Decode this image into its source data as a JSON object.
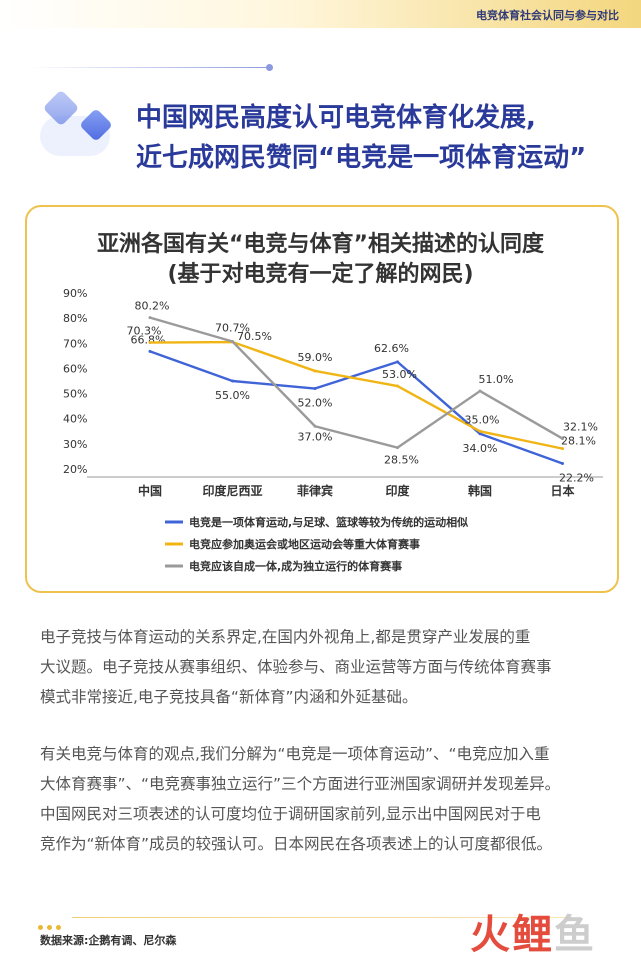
{
  "header": {
    "section_title": "电竞体育社会认同与参与对比"
  },
  "headline": {
    "line1": "中国网民高度认可电竞体育化发展,",
    "line2": "近七成网民赞同“电竞是一项体育运动”"
  },
  "chart_data": {
    "type": "line",
    "title": "亚洲各国有关“电竞与体育”相关描述的认同度",
    "subtitle": "(基于对电竞有一定了解的网民)",
    "categories": [
      "中国",
      "印度尼西亚",
      "菲律宾",
      "印度",
      "韩国",
      "日本"
    ],
    "y_ticks": [
      "90%",
      "80%",
      "70%",
      "60%",
      "50%",
      "40%",
      "30%",
      "20%"
    ],
    "ylim": [
      20,
      90
    ],
    "grid": false,
    "legend_position": "bottom",
    "series": [
      {
        "name": "电竞是一项体育运动,与足球、篮球等较为传统的运动相似",
        "color": "#3f64d8",
        "values": [
          66.8,
          55.0,
          52.0,
          62.6,
          34.0,
          22.2
        ],
        "labels": [
          "66.8%",
          "55.0%",
          "52.0%",
          "62.6%",
          "34.0%",
          "22.2%"
        ]
      },
      {
        "name": "电竞应参加奥运会或地区运动会等重大体育赛事",
        "color": "#f0b515",
        "values": [
          70.3,
          70.5,
          59.0,
          53.0,
          35.0,
          28.1
        ],
        "labels": [
          "70.3%",
          "70.5%",
          "59.0%",
          "53.0%",
          "35.0%",
          "28.1%"
        ]
      },
      {
        "name": "电竞应该自成一体,成为独立运行的体育赛事",
        "color": "#9a9a9a",
        "values": [
          80.2,
          70.7,
          37.0,
          28.5,
          51.0,
          32.1
        ],
        "labels": [
          "80.2%",
          "70.7%",
          "37.0%",
          "28.5%",
          "51.0%",
          "32.1%"
        ]
      }
    ]
  },
  "body": {
    "para1_lines": [
      "电子竞技与体育运动的关系界定,在国内外视角上,都是贯穿产业发展的重",
      "大议题。电子竞技从赛事组织、体验参与、商业运营等方面与传统体育赛事",
      "模式非常接近,电子竞技具备“新体育”内涵和外延基础。"
    ],
    "para2_lines": [
      "有关电竞与体育的观点,我们分解为“电竞是一项体育运动”、“电竞应加入重",
      "大体育赛事”、“电竞赛事独立运行”三个方面进行亚洲国家调研并发现差异。",
      "中国网民对三项表述的认可度均位于调研国家前列,显示出中国网民对于电",
      "竞作为“新体育”成员的较强认可。日本网民在各项表述上的认可度都很低。"
    ]
  },
  "footer": {
    "source": "数据来源:企鹅有调、尼尔森",
    "watermark_main": "火鲤",
    "watermark_accent": "鱼"
  }
}
